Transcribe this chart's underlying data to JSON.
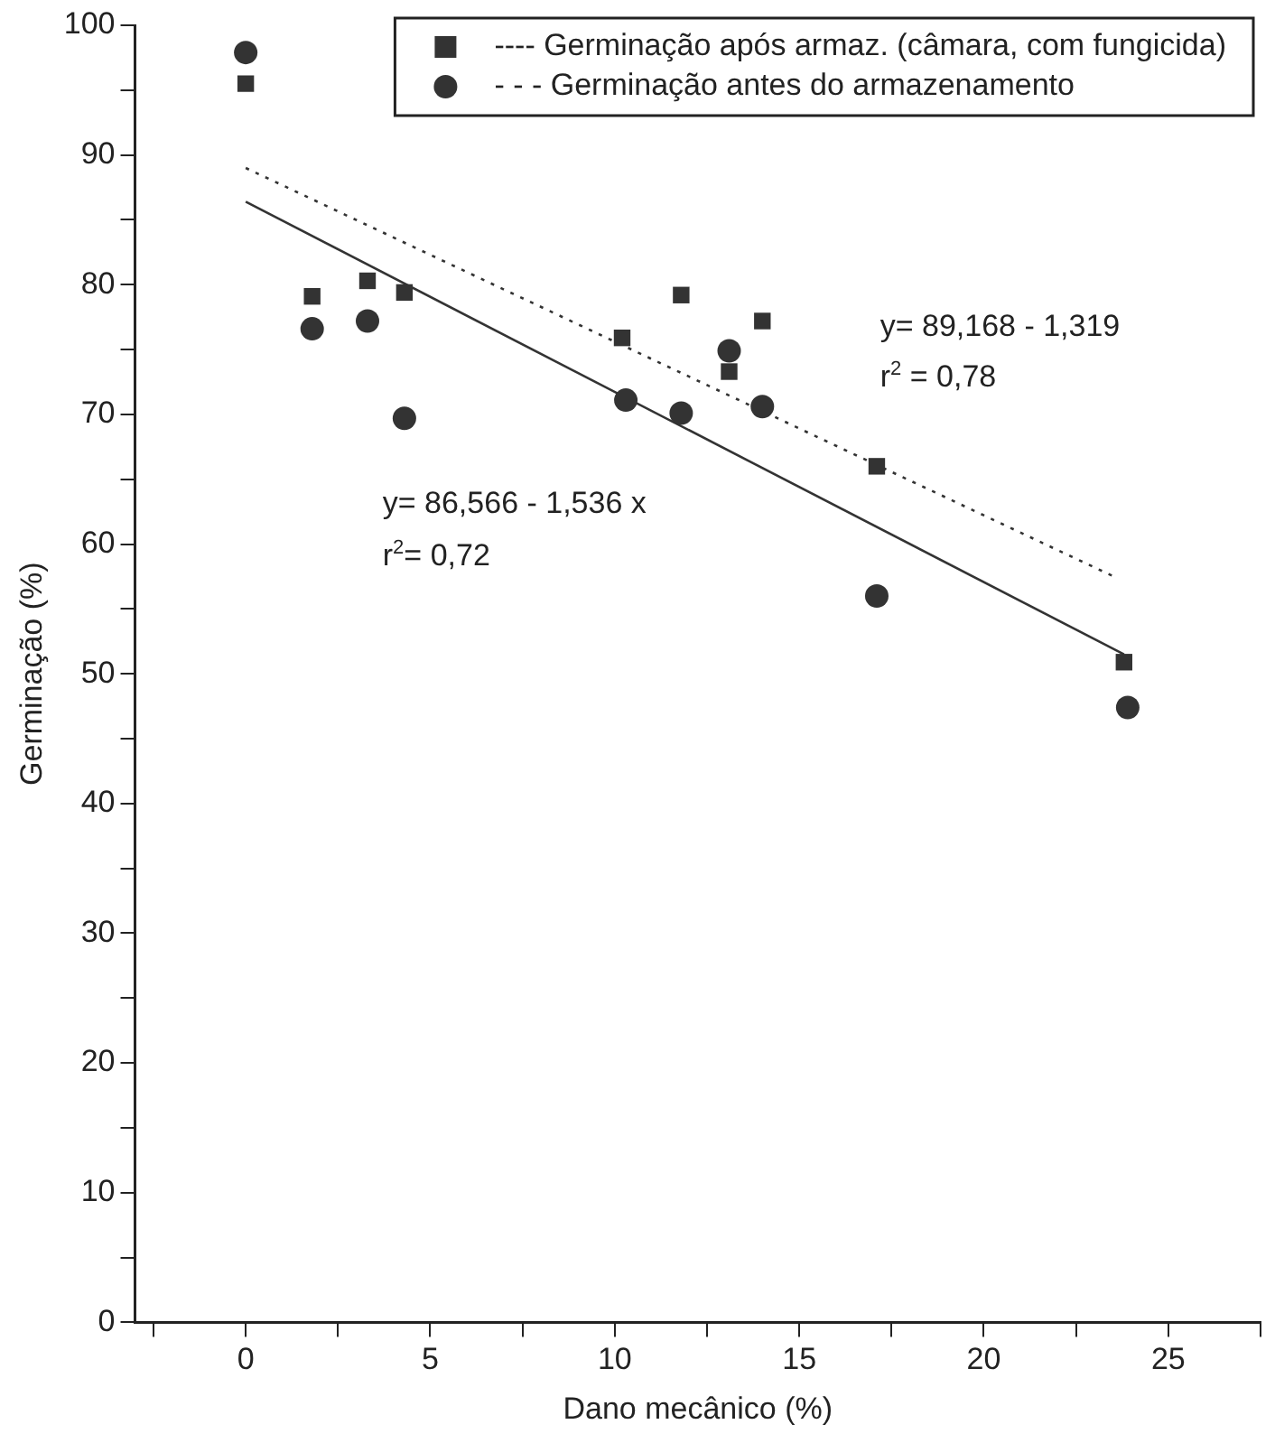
{
  "chart_data": {
    "type": "scatter",
    "xlabel": "Dano mecânico (%)",
    "ylabel": "Germinação (%)",
    "xlim": [
      -3,
      27.5
    ],
    "xticks": [
      {
        "value": -2.5,
        "label": null
      },
      0,
      {
        "value": 2.5,
        "label": null
      },
      5,
      {
        "value": 7.5,
        "label": null
      },
      10,
      {
        "value": 12.5,
        "label": null
      },
      15,
      {
        "value": 17.5,
        "label": null
      },
      20,
      {
        "value": 22.5,
        "label": null
      },
      25,
      {
        "value": 27.5,
        "label": null
      }
    ],
    "ylim": [
      0,
      100
    ],
    "yticks": [
      0,
      {
        "value": 5,
        "label": null
      },
      10,
      {
        "value": 15,
        "label": null
      },
      20,
      {
        "value": 25,
        "label": null
      },
      30,
      {
        "value": 35,
        "label": null
      },
      40,
      {
        "value": 45,
        "label": null
      },
      50,
      {
        "value": 55,
        "label": null
      },
      60,
      {
        "value": 65,
        "label": null
      },
      70,
      {
        "value": 75,
        "label": null
      },
      80,
      {
        "value": 85,
        "label": null
      },
      90,
      {
        "value": 95,
        "label": null
      },
      100
    ],
    "grid": false,
    "legend": "top right",
    "series": [
      {
        "name": "---- Germinação após armaz. (câmara, com fungicida)",
        "marker": "square",
        "color": "#333333",
        "x": [
          0,
          1.8,
          3.3,
          4.3,
          10.2,
          11.8,
          14.0,
          13.1,
          17.1,
          23.8
        ],
        "values": [
          95.5,
          79.1,
          80.3,
          79.4,
          75.9,
          79.2,
          77.2,
          73.3,
          66.0,
          50.9
        ]
      },
      {
        "name": "- - - Germinação antes do armazenamento",
        "marker": "circle",
        "color": "#333333",
        "x": [
          0,
          1.8,
          3.3,
          4.3,
          10.3,
          11.8,
          14.0,
          13.1,
          17.1,
          23.9
        ],
        "values": [
          97.9,
          76.6,
          77.2,
          69.7,
          71.1,
          70.1,
          70.6,
          74.9,
          56.0,
          47.4
        ]
      },
      {
        "type": "line",
        "marker": "none",
        "line_style": "solid",
        "color": "#333333",
        "x": [
          0,
          23.8
        ],
        "values": [
          86.4,
          51.5
        ]
      },
      {
        "type": "line",
        "marker": "none",
        "line_style": "dotted",
        "color": "#333333",
        "x": [
          0,
          23.6
        ],
        "values": [
          89.0,
          57.4
        ]
      }
    ],
    "annotations": [
      "y= 89,168 - 1,319",
      "r$^{2}$ = 0,78",
      "y= 86,566 - 1,536 x",
      "r$^{2}$= 0,72"
    ]
  }
}
